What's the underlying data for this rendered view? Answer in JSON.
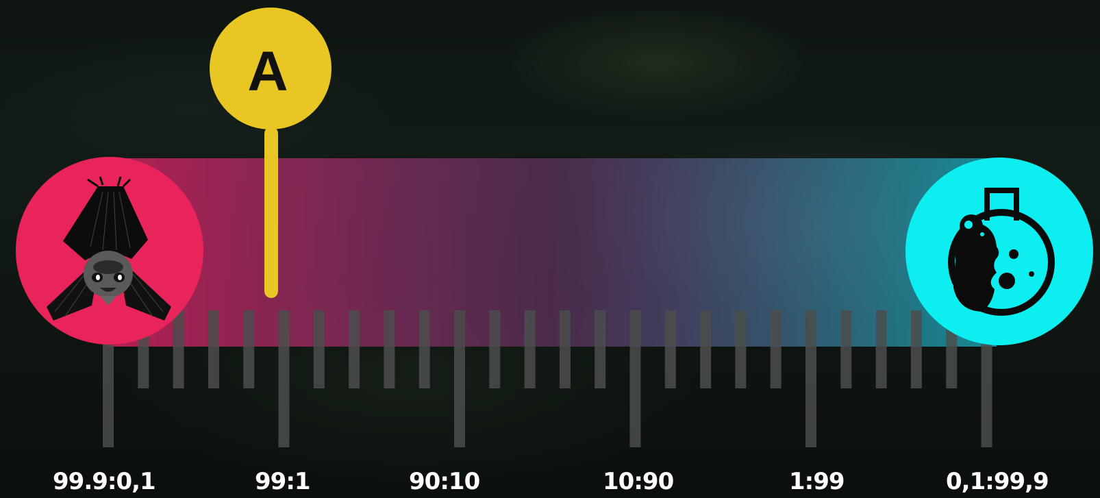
{
  "scale": {
    "labels": [
      "99.9:0,1",
      "99:1",
      "90:10",
      "10:90",
      "1:99",
      "0,1:99,9"
    ]
  },
  "marker": {
    "label": "A"
  },
  "left_end": {
    "icon": "bat-icon",
    "color": "#e8245a"
  },
  "right_end": {
    "icon": "lab-mouse-flask-icon",
    "color": "#0ceeef"
  },
  "marker_color": "#e8c623",
  "tick_color": "#4b4e4c"
}
